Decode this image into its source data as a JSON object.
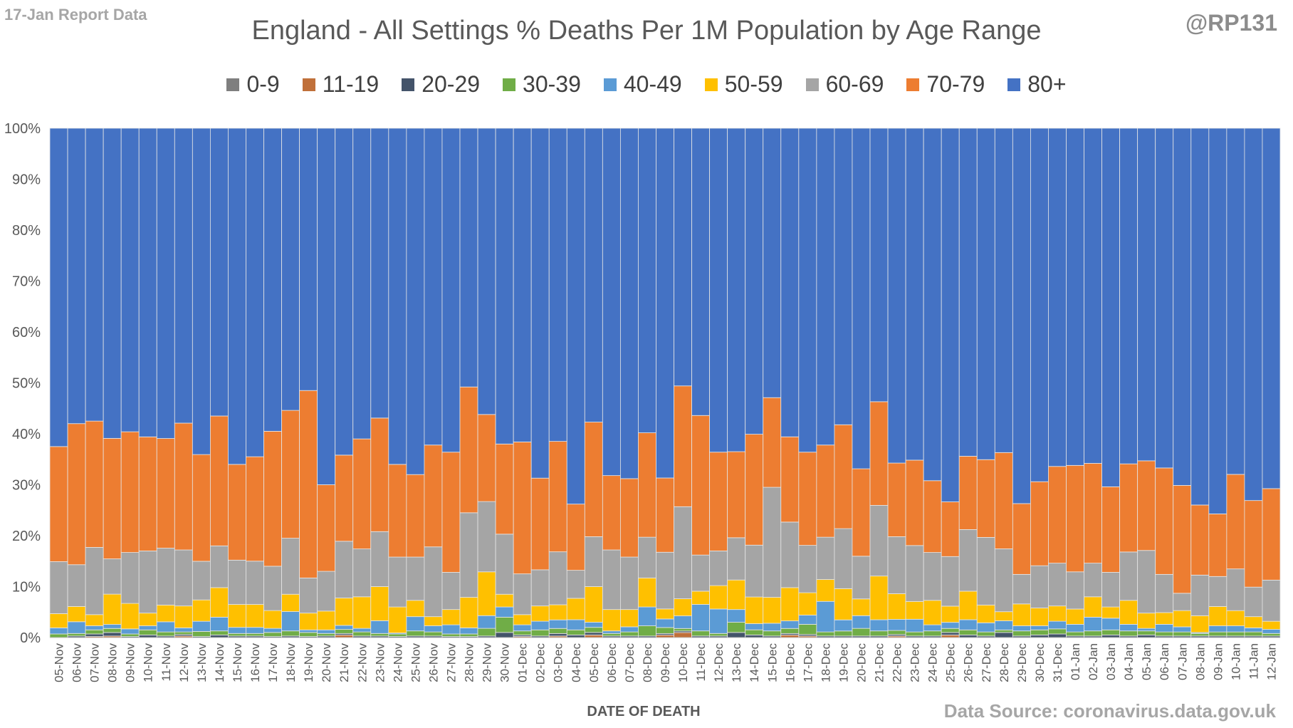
{
  "header": {
    "report_tag": "17-Jan Report Data",
    "handle": "@RP131",
    "source": "Data Source: coronavirus.data.gov.uk"
  },
  "colors": {
    "0-9": "#7f7f7f",
    "11-19": "#c0703a",
    "20-29": "#44546a",
    "30-39": "#70ad47",
    "40-49": "#5b9bd5",
    "50-59": "#ffc000",
    "60-69": "#a5a5a5",
    "70-79": "#ed7d31",
    "80+": "#4472c4"
  },
  "chart_data": {
    "type": "bar",
    "stacked": "percent",
    "title": "England - All Settings % Deaths Per 1M Population by Age Range",
    "xlabel": "DATE OF DEATH",
    "ylabel": "",
    "ylim": [
      0,
      100
    ],
    "yticks": [
      "0%",
      "10%",
      "20%",
      "30%",
      "40%",
      "50%",
      "60%",
      "70%",
      "80%",
      "90%",
      "100%"
    ],
    "grid": false,
    "legend_position": "top",
    "categories": [
      "05-Nov",
      "06-Nov",
      "07-Nov",
      "08-Nov",
      "09-Nov",
      "10-Nov",
      "11-Nov",
      "12-Nov",
      "13-Nov",
      "14-Nov",
      "15-Nov",
      "16-Nov",
      "17-Nov",
      "18-Nov",
      "19-Nov",
      "20-Nov",
      "21-Nov",
      "22-Nov",
      "23-Nov",
      "24-Nov",
      "25-Nov",
      "26-Nov",
      "27-Nov",
      "28-Nov",
      "29-Nov",
      "30-Nov",
      "01-Dec",
      "02-Dec",
      "03-Dec",
      "04-Dec",
      "05-Dec",
      "06-Dec",
      "07-Dec",
      "08-Dec",
      "09-Dec",
      "10-Dec",
      "11-Dec",
      "12-Dec",
      "13-Dec",
      "14-Dec",
      "15-Dec",
      "16-Dec",
      "17-Dec",
      "18-Dec",
      "19-Dec",
      "20-Dec",
      "21-Dec",
      "22-Dec",
      "23-Dec",
      "24-Dec",
      "25-Dec",
      "26-Dec",
      "27-Dec",
      "28-Dec",
      "29-Dec",
      "30-Dec",
      "31-Dec",
      "01-Jan",
      "02-Jan",
      "03-Jan",
      "04-Jan",
      "05-Jan",
      "06-Jan",
      "07-Jan",
      "08-Jan",
      "09-Jan",
      "10-Jan",
      "11-Jan",
      "12-Jan"
    ],
    "series": [
      {
        "name": "0-9",
        "values": [
          0,
          0,
          0,
          0,
          0,
          0,
          0,
          0,
          0,
          0,
          0,
          0,
          0,
          0,
          0,
          0,
          0,
          0,
          0,
          0,
          0,
          0,
          0,
          0,
          0,
          0,
          0,
          0,
          0,
          0,
          0,
          0,
          0,
          0,
          0,
          0,
          0,
          0,
          0,
          0,
          0,
          0,
          0,
          0,
          0,
          0,
          0,
          0,
          0,
          0,
          0,
          0,
          0,
          0,
          0,
          0,
          0,
          0,
          0,
          0,
          0,
          0,
          0,
          0,
          0,
          0,
          0,
          0,
          0
        ]
      },
      {
        "name": "11-19",
        "values": [
          0,
          0,
          0.2,
          0.3,
          0,
          0,
          0,
          0.3,
          0,
          0,
          0,
          0,
          0,
          0,
          0,
          0,
          0.5,
          0,
          0,
          0,
          0,
          0,
          0,
          0,
          0,
          0,
          0.2,
          0,
          0.3,
          0,
          0.5,
          0,
          0,
          0,
          0.5,
          1.0,
          0,
          0,
          0,
          0,
          0,
          0.5,
          0.3,
          0,
          0,
          0,
          0,
          0.3,
          0,
          0,
          0.5,
          0,
          0,
          0,
          0,
          0,
          0,
          0,
          0,
          0,
          0,
          0,
          0,
          0,
          0,
          0,
          0,
          0,
          0
        ]
      },
      {
        "name": "20-29",
        "values": [
          0,
          0.3,
          0.5,
          0.7,
          0.2,
          0.5,
          0.3,
          0.3,
          0.2,
          0.5,
          0.3,
          0.3,
          0.2,
          0.3,
          0.2,
          0.3,
          0.3,
          0.3,
          0.3,
          0.2,
          0.3,
          0.3,
          0.2,
          0.2,
          0.3,
          1.0,
          0.3,
          0.3,
          0.5,
          0.5,
          0.5,
          0.3,
          0.3,
          0.3,
          0.3,
          0.3,
          0.3,
          0.3,
          1.0,
          0.5,
          0.3,
          0.3,
          0.3,
          0.3,
          0.3,
          0.3,
          0.3,
          0.3,
          0.3,
          0.3,
          0.5,
          0.5,
          0.3,
          1.0,
          0.3,
          0.5,
          0.7,
          0.3,
          0.3,
          0.5,
          0.3,
          0.5,
          0.3,
          0.3,
          0.3,
          0.3,
          0.3,
          0.3,
          0.3
        ]
      },
      {
        "name": "30-39",
        "values": [
          0.7,
          0.5,
          0.8,
          0.8,
          0.5,
          1.0,
          0.8,
          0.5,
          1.0,
          0.8,
          0.5,
          0.5,
          0.8,
          1.0,
          0.8,
          0.5,
          0.8,
          0.8,
          0.5,
          0.5,
          1.0,
          0.8,
          0.5,
          0.5,
          1.5,
          3.0,
          0.8,
          1.2,
          1.0,
          1.0,
          1.0,
          0.5,
          0.8,
          2.0,
          1.2,
          0.5,
          1.0,
          0.5,
          2.0,
          1.0,
          1.0,
          1.0,
          2.0,
          0.8,
          1.0,
          1.5,
          1.0,
          0.8,
          0.8,
          1.0,
          0.8,
          1.0,
          0.8,
          0.5,
          1.0,
          1.0,
          1.0,
          0.8,
          1.0,
          1.0,
          1.0,
          0.8,
          0.8,
          0.8,
          0.5,
          0.8,
          0.8,
          0.8,
          0.5
        ]
      },
      {
        "name": "40-49",
        "values": [
          1.2,
          2.3,
          0.8,
          0.8,
          1.0,
          0.8,
          2.0,
          0.8,
          2.0,
          2.7,
          1.2,
          1.2,
          0.8,
          3.8,
          0.5,
          0.7,
          0.8,
          0.7,
          2.5,
          0.2,
          2.8,
          1.2,
          1.8,
          1.2,
          2.5,
          2.0,
          1.2,
          1.7,
          1.7,
          2.0,
          1.0,
          0.5,
          1.0,
          3.7,
          1.7,
          2.5,
          5.2,
          4.8,
          2.5,
          1.2,
          1.5,
          1.5,
          1.8,
          6.0,
          2.2,
          2.5,
          2.2,
          2.2,
          2.5,
          1.2,
          1.2,
          2.0,
          1.8,
          1.8,
          1.0,
          0.8,
          1.5,
          1.5,
          2.7,
          2.3,
          1.3,
          0.5,
          1.5,
          1.0,
          0.2,
          1.2,
          1.2,
          0.8,
          0.8
        ]
      },
      {
        "name": "50-59",
        "values": [
          2.8,
          3.0,
          2.2,
          6.0,
          5.0,
          2.5,
          3.3,
          4.3,
          4.2,
          5.8,
          4.5,
          4.5,
          3.5,
          3.4,
          3.3,
          3.7,
          5.4,
          6.2,
          6.7,
          5.1,
          3.2,
          1.8,
          3.0,
          6.0,
          8.6,
          2.5,
          2.0,
          3.0,
          3.0,
          4.2,
          7.0,
          4.2,
          3.4,
          5.7,
          2.0,
          3.4,
          2.6,
          4.6,
          5.8,
          5.2,
          5.1,
          6.6,
          4.4,
          4.3,
          6.2,
          3.3,
          8.6,
          5.1,
          3.5,
          4.8,
          3.2,
          5.6,
          3.5,
          1.8,
          4.3,
          3.5,
          3.0,
          3.0,
          4.0,
          2.2,
          4.7,
          3.0,
          2.3,
          3.2,
          3.3,
          3.8,
          3.0,
          2.2,
          1.6
        ]
      },
      {
        "name": "60-69",
        "values": [
          10.2,
          8.2,
          13.2,
          7.0,
          10.0,
          12.2,
          11.2,
          11.0,
          7.6,
          8.2,
          8.7,
          8.5,
          8.7,
          11.0,
          6.9,
          7.8,
          11.2,
          9.4,
          10.8,
          9.8,
          8.5,
          13.7,
          7.3,
          16.6,
          13.8,
          11.8,
          8.0,
          7.1,
          10.5,
          5.5,
          9.8,
          11.7,
          10.3,
          8.0,
          11.3,
          18.3,
          7.1,
          6.8,
          8.3,
          10.1,
          21.6,
          13.0,
          9.3,
          8.3,
          11.9,
          8.4,
          13.9,
          11.3,
          11.0,
          9.4,
          9.8,
          12.1,
          13.3,
          12.4,
          5.8,
          8.3,
          8.4,
          7.3,
          6.6,
          6.8,
          9.5,
          12.3,
          7.5,
          3.4,
          8.0,
          5.9,
          8.2,
          5.8,
          8.1
        ]
      },
      {
        "name": "70-79",
        "values": [
          22.6,
          27.7,
          24.8,
          23.9,
          23.7,
          22.4,
          21.6,
          24.9,
          21.0,
          25.5,
          18.8,
          20.5,
          26.5,
          25.1,
          36.8,
          17.0,
          17.0,
          21.6,
          22.3,
          18.2,
          16.2,
          20.0,
          23.6,
          24.7,
          17.1,
          17.7,
          25.9,
          18.0,
          21.9,
          13.0,
          22.5,
          14.6,
          15.4,
          20.5,
          14.8,
          24.0,
          27.4,
          19.4,
          16.9,
          21.6,
          17.6,
          16.9,
          18.3,
          18.1,
          20.6,
          17.2,
          20.4,
          14.6,
          16.8,
          14.1,
          10.8,
          14.4,
          15.3,
          19.0,
          13.9,
          16.5,
          19.0,
          20.9,
          19.6,
          16.8,
          17.3,
          17.6,
          20.9,
          21.2,
          13.8,
          12.3,
          18.6,
          17.0,
          18.0
        ]
      },
      {
        "name": "80+",
        "values": [
          62.5,
          58.0,
          57.5,
          61.5,
          59.6,
          60.6,
          61.1,
          57.9,
          64.2,
          56.5,
          66.0,
          64.5,
          59.5,
          55.4,
          51.5,
          70.0,
          64.5,
          61.0,
          56.9,
          66.0,
          68.0,
          62.2,
          63.6,
          50.8,
          56.2,
          62.0,
          61.6,
          68.7,
          62.1,
          73.8,
          57.7,
          68.2,
          68.8,
          59.8,
          69.7,
          51.2,
          56.4,
          63.6,
          63.5,
          59.6,
          52.9,
          61.2,
          63.6,
          62.2,
          58.8,
          67.0,
          53.8,
          66.4,
          65.3,
          69.2,
          73.8,
          64.4,
          65.2,
          64.0,
          73.7,
          69.4,
          66.4,
          66.2,
          65.8,
          70.4,
          65.9,
          65.3,
          66.7,
          70.2,
          74.2,
          75.8,
          68.1,
          73.1,
          70.9
        ]
      }
    ]
  }
}
